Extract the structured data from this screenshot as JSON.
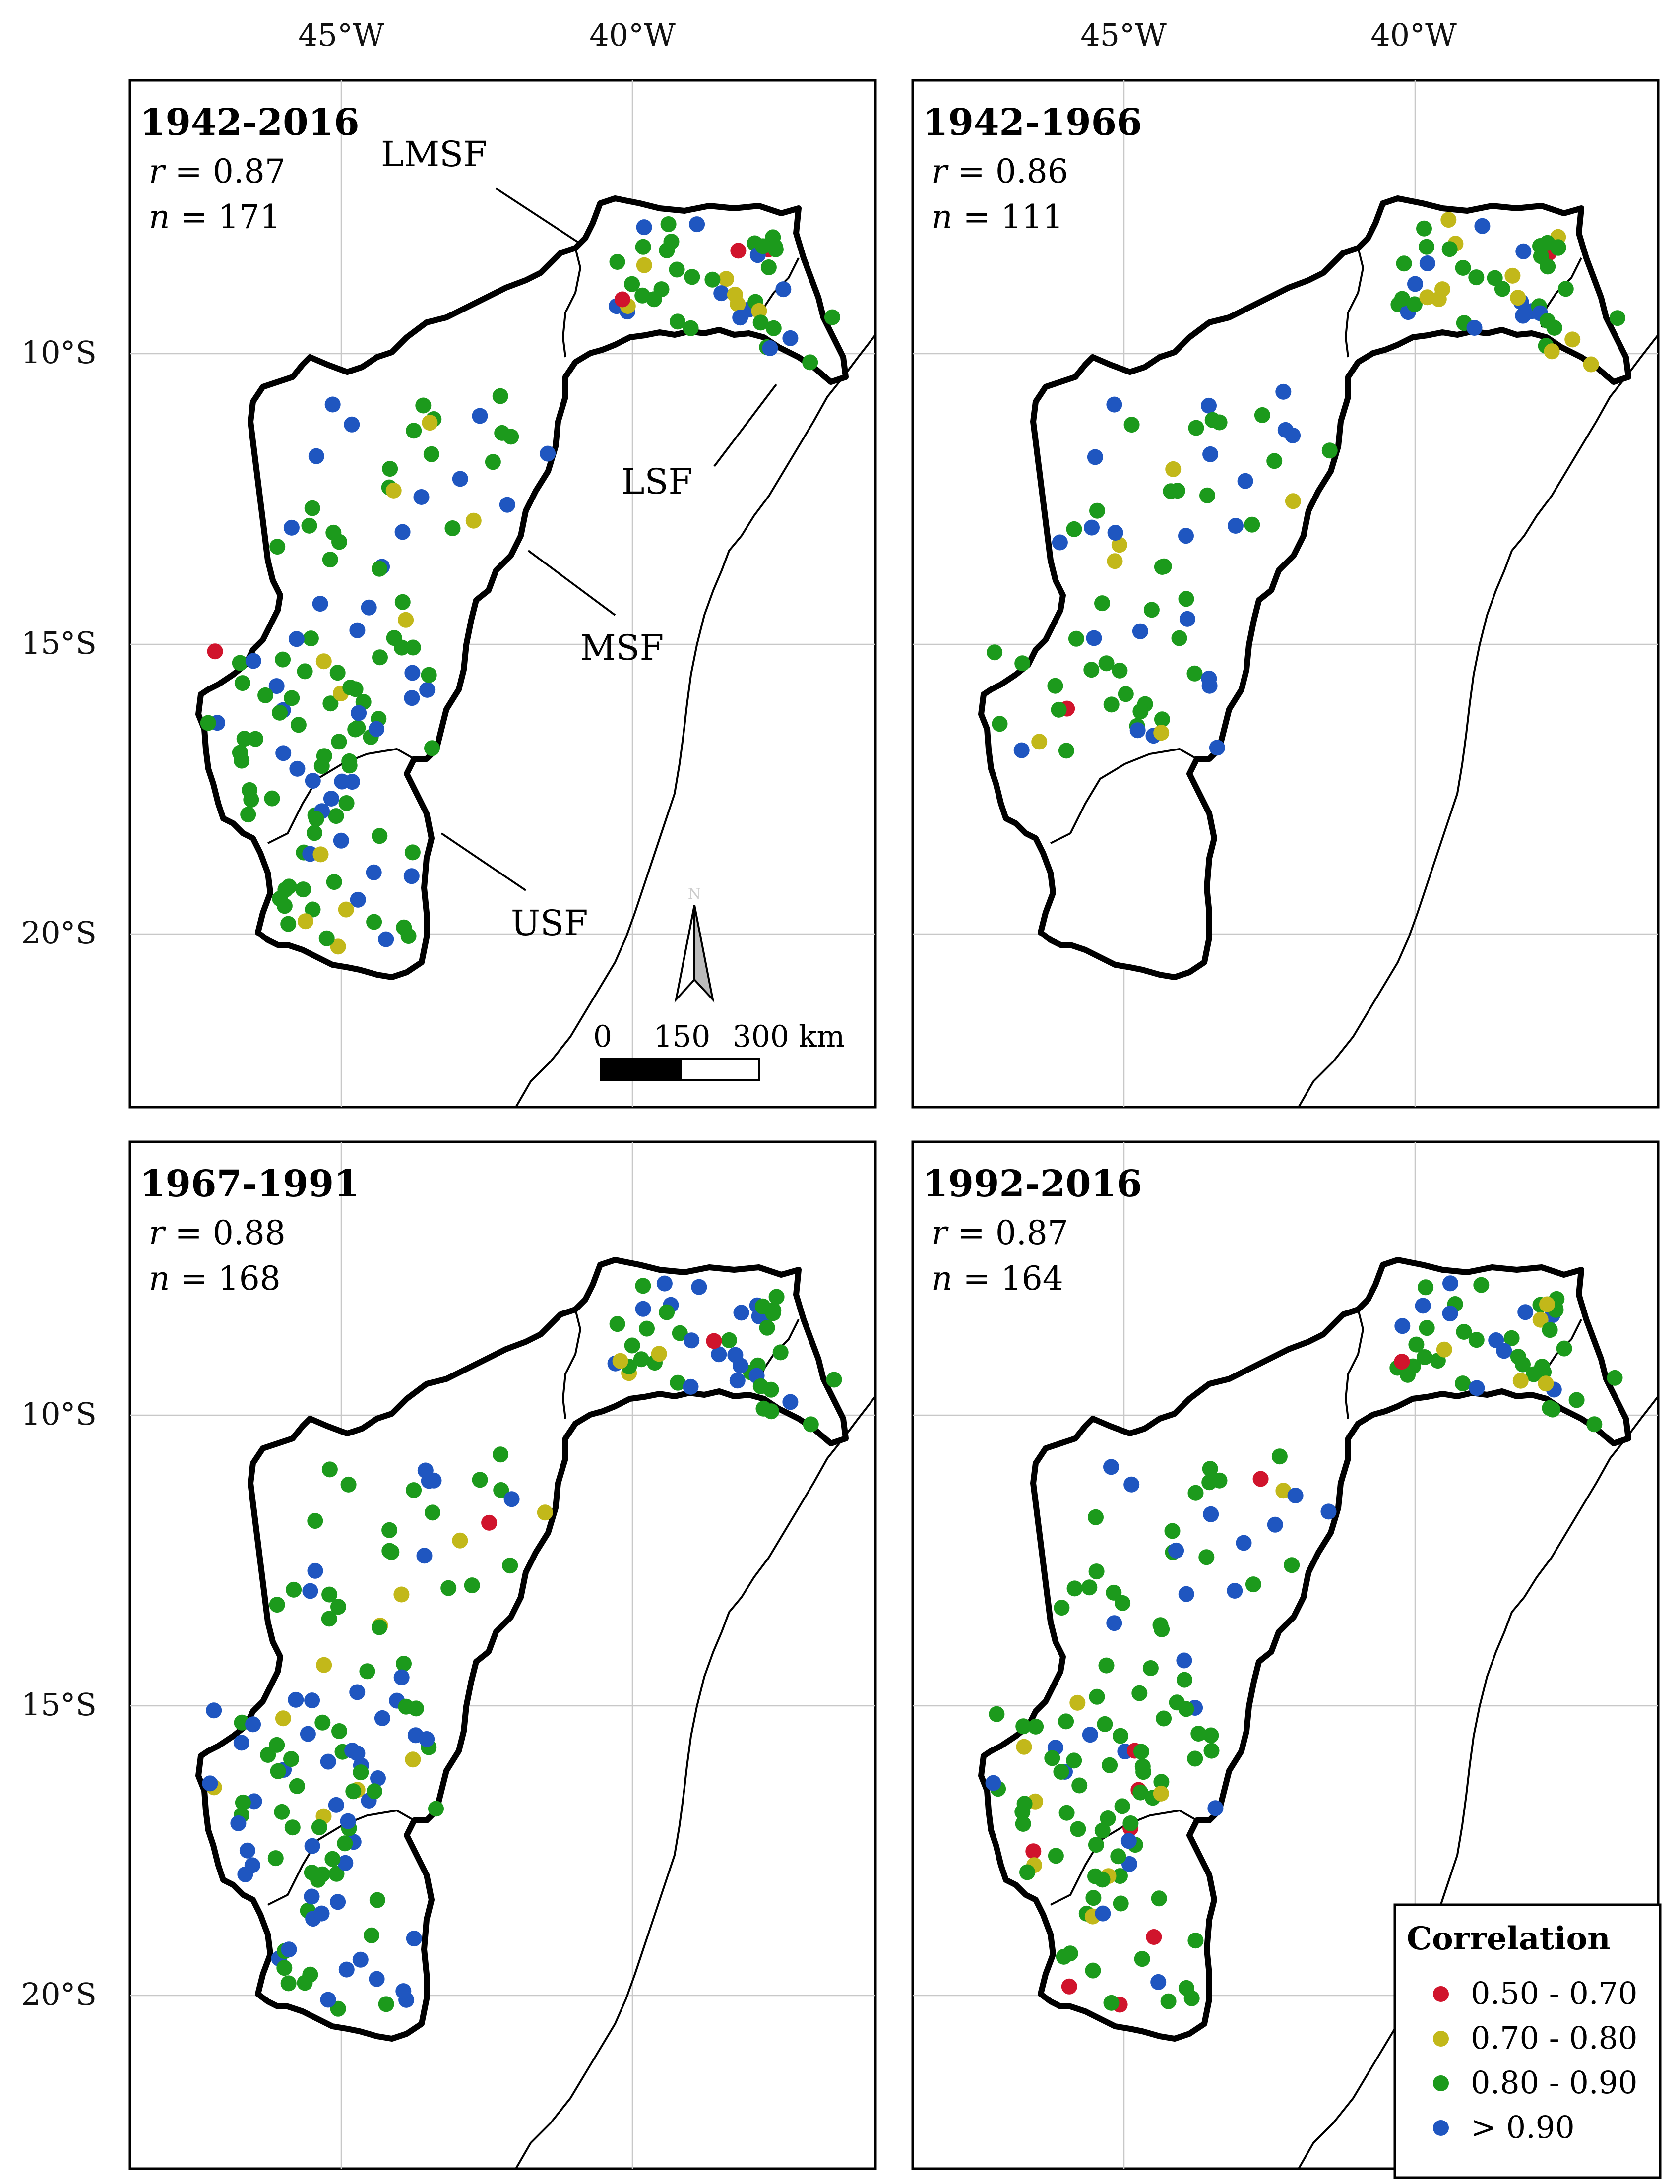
{
  "axes": {
    "lon_labels": [
      "45°W",
      "40°W"
    ],
    "lat_labels": [
      "10°S",
      "15°S",
      "20°S"
    ]
  },
  "panels": [
    {
      "period": "1942-2016",
      "r_label": "r",
      "r_value": " = 0.87",
      "n_label": "n",
      "n_value": " = 171"
    },
    {
      "period": "1942-1966",
      "r_label": "r",
      "r_value": " = 0.86",
      "n_label": "n",
      "n_value": " = 111"
    },
    {
      "period": "1967-1991",
      "r_label": "r",
      "r_value": " = 0.88",
      "n_label": "n",
      "n_value": " = 168"
    },
    {
      "period": "1992-2016",
      "r_label": "r",
      "r_value": " = 0.87",
      "n_label": "n",
      "n_value": " = 164"
    }
  ],
  "regions": {
    "lmsf": "LMSF",
    "lsf": "LSF",
    "msf": "MSF",
    "usf": "USF"
  },
  "north_arrow": {
    "label": "N"
  },
  "scale_bar": {
    "labels": [
      "0",
      "150",
      "300 km"
    ]
  },
  "legend": {
    "title": "Correlation",
    "classes": [
      {
        "label": "0.50 - 0.70",
        "color": "#d0142c"
      },
      {
        "label": "0.70 - 0.80",
        "color": "#c2b81a"
      },
      {
        "label": "0.80 - 0.90",
        "color": "#1c9a1c"
      },
      {
        "label": "> 0.90",
        "color": "#1f56c0"
      }
    ]
  }
}
